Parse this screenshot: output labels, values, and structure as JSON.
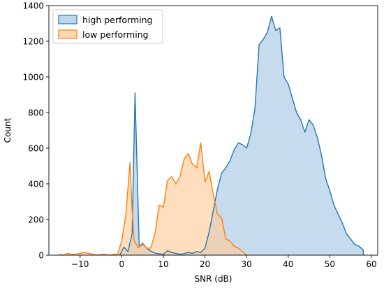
{
  "chart_data": {
    "type": "area",
    "xlabel": "SNR (dB)",
    "ylabel": "Count",
    "xlim": [
      -17.5,
      61.5
    ],
    "ylim": [
      0,
      1400
    ],
    "xticks": [
      -10,
      0,
      10,
      20,
      30,
      40,
      50,
      60
    ],
    "xtick_labels": [
      "−10",
      "0",
      "10",
      "20",
      "30",
      "40",
      "50",
      "60"
    ],
    "yticks": [
      0,
      200,
      400,
      600,
      800,
      1000,
      1200,
      1400
    ],
    "ytick_labels": [
      "0",
      "200",
      "400",
      "600",
      "800",
      "1000",
      "1200",
      "1400"
    ],
    "grid": false,
    "legend_position": "top-left",
    "series": [
      {
        "name": "high performing",
        "color": "#1f77b4",
        "fill": "#a8c8e4",
        "points": [
          [
            -0.5,
            0
          ],
          [
            0.5,
            45
          ],
          [
            1.5,
            20
          ],
          [
            2.5,
            120
          ],
          [
            3.2,
            910
          ],
          [
            4.2,
            50
          ],
          [
            5.2,
            60
          ],
          [
            6.2,
            35
          ],
          [
            7.2,
            20
          ],
          [
            8.2,
            10
          ],
          [
            10,
            5
          ],
          [
            11,
            25
          ],
          [
            12,
            15
          ],
          [
            13,
            10
          ],
          [
            14,
            5
          ],
          [
            15,
            8
          ],
          [
            16,
            15
          ],
          [
            17,
            10
          ],
          [
            18,
            20
          ],
          [
            19,
            15
          ],
          [
            20,
            40
          ],
          [
            21,
            130
          ],
          [
            22,
            250
          ],
          [
            23,
            370
          ],
          [
            24,
            460
          ],
          [
            25,
            490
          ],
          [
            26,
            530
          ],
          [
            27,
            590
          ],
          [
            28,
            630
          ],
          [
            29,
            620
          ],
          [
            30,
            600
          ],
          [
            31,
            680
          ],
          [
            32,
            820
          ],
          [
            33,
            1180
          ],
          [
            34,
            1210
          ],
          [
            35,
            1250
          ],
          [
            36,
            1340
          ],
          [
            37,
            1260
          ],
          [
            38,
            1275
          ],
          [
            39,
            1000
          ],
          [
            40,
            960
          ],
          [
            41,
            880
          ],
          [
            42,
            800
          ],
          [
            43,
            760
          ],
          [
            44,
            690
          ],
          [
            45,
            760
          ],
          [
            46,
            730
          ],
          [
            47,
            660
          ],
          [
            48,
            560
          ],
          [
            49,
            430
          ],
          [
            50,
            360
          ],
          [
            51,
            280
          ],
          [
            52,
            230
          ],
          [
            53,
            180
          ],
          [
            54,
            120
          ],
          [
            55,
            90
          ],
          [
            56,
            60
          ],
          [
            57,
            50
          ],
          [
            58,
            30
          ],
          [
            58.1,
            0
          ]
        ]
      },
      {
        "name": "low performing",
        "color": "#ff7f0e",
        "fill": "#ffcc99",
        "points": [
          [
            -15,
            5
          ],
          [
            -14,
            0
          ],
          [
            -13,
            10
          ],
          [
            -12,
            5
          ],
          [
            -11,
            5
          ],
          [
            -10,
            10
          ],
          [
            -9,
            15
          ],
          [
            -8,
            10
          ],
          [
            -7,
            5
          ],
          [
            -6,
            0
          ],
          [
            -5,
            5
          ],
          [
            -4,
            5
          ],
          [
            -3,
            0
          ],
          [
            -2,
            5
          ],
          [
            -1,
            5
          ],
          [
            0,
            80
          ],
          [
            1,
            230
          ],
          [
            2,
            520
          ],
          [
            2.5,
            250
          ],
          [
            3,
            80
          ],
          [
            4,
            40
          ],
          [
            5,
            70
          ],
          [
            6,
            40
          ],
          [
            7,
            40
          ],
          [
            8,
            125
          ],
          [
            9,
            280
          ],
          [
            10,
            270
          ],
          [
            11,
            420
          ],
          [
            12,
            440
          ],
          [
            13,
            400
          ],
          [
            14,
            440
          ],
          [
            15,
            540
          ],
          [
            16,
            570
          ],
          [
            17,
            510
          ],
          [
            18,
            490
          ],
          [
            19,
            630
          ],
          [
            20,
            410
          ],
          [
            21,
            470
          ],
          [
            22,
            340
          ],
          [
            23,
            230
          ],
          [
            24,
            210
          ],
          [
            25,
            90
          ],
          [
            26,
            80
          ],
          [
            27,
            50
          ],
          [
            28,
            40
          ],
          [
            29,
            20
          ],
          [
            30,
            0
          ]
        ]
      }
    ]
  }
}
